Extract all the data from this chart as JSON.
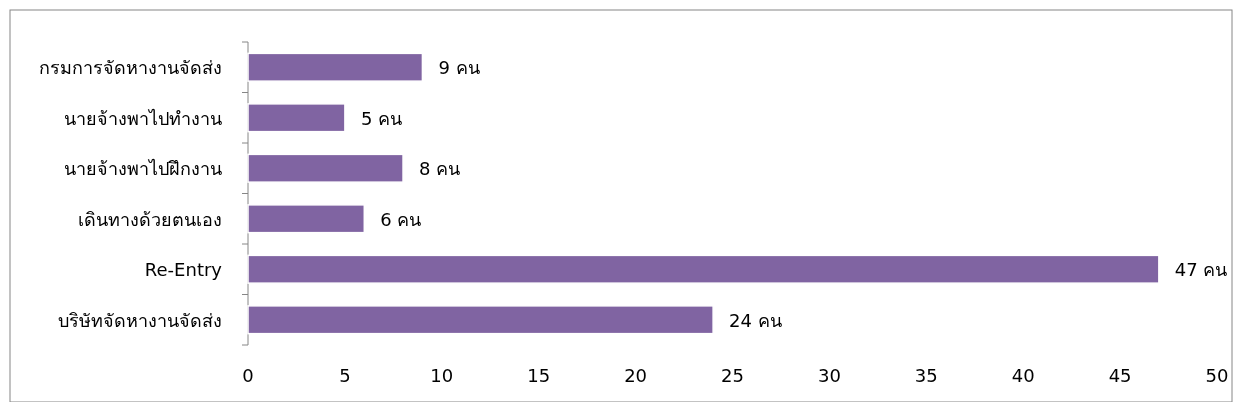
{
  "chart_data": {
    "type": "bar",
    "orientation": "horizontal",
    "categories": [
      "กรมการจัดหางานจัดส่ง",
      "นายจ้างพาไปทำงาน",
      "นายจ้างพาไปฝึกงาน",
      "เดินทางด้วยตนเอง",
      "Re-Entry",
      "บริษัทจัดหางานจัดส่ง"
    ],
    "values": [
      9,
      5,
      8,
      6,
      47,
      24
    ],
    "value_labels": [
      "9 คน",
      "5 คน",
      "8 คน",
      "6 คน",
      "47 คน",
      "24 คน"
    ],
    "color": "#8064a2",
    "xlim": [
      0,
      50
    ],
    "xticks": [
      0,
      5,
      10,
      15,
      20,
      25,
      30,
      35,
      40,
      45,
      50
    ],
    "grid": false
  }
}
